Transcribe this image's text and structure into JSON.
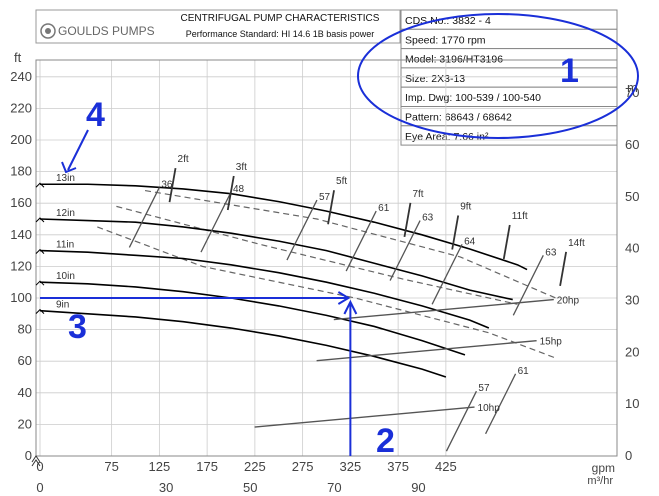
{
  "brand": {
    "name": "GOULDS PUMPS"
  },
  "header": {
    "title": "CENTRIFUGAL PUMP CHARACTERISTICS",
    "subtitle": "Performance Standard: HI 14.6 1B basis power"
  },
  "info_box": [
    "CDS No.: 3832 - 4",
    "Speed: 1770 rpm",
    "Model: 3196/HT3196",
    "Size: 2X3-13",
    "Imp. Dwg: 100-539 / 100-540",
    "Pattern: 68643 / 68642",
    "Eye Area: 7.66 in²"
  ],
  "annotations": [
    {
      "text": "1",
      "color": "#1a2fd8"
    },
    {
      "text": "2",
      "color": "#1a2fd8"
    },
    {
      "text": "3",
      "color": "#1a2fd8"
    },
    {
      "text": "4",
      "color": "#1a2fd8"
    }
  ],
  "chart_data": {
    "type": "line",
    "title": "CENTRIFUGAL PUMP CHARACTERISTICS",
    "xlabel": "gpm",
    "xlabel2": "m³/hr",
    "ylabel": "ft",
    "ylabel2": "m",
    "xlim": [
      0,
      510
    ],
    "ylim": [
      0,
      250
    ],
    "y2lim": [
      0,
      76.2
    ],
    "x2lim": [
      0,
      115.8
    ],
    "grid": true,
    "x_ticks": [
      0,
      75,
      125,
      175,
      225,
      275,
      325,
      375,
      425
    ],
    "x_tick_labels": [
      "0",
      "75",
      "125",
      "175",
      "225",
      "275",
      "325",
      "375",
      "425"
    ],
    "y_ticks": [
      0,
      20,
      40,
      60,
      80,
      100,
      120,
      140,
      160,
      180,
      200,
      220,
      240
    ],
    "y_tick_labels": [
      "0",
      "20",
      "40",
      "60",
      "80",
      "100",
      "120",
      "140",
      "160",
      "180",
      "200",
      "220",
      "240"
    ],
    "y2_ticks": [
      0,
      10,
      20,
      30,
      40,
      50,
      60,
      70
    ],
    "y2_tick_labels": [
      "0",
      "10",
      "20",
      "30",
      "40",
      "50",
      "60",
      "70"
    ],
    "x2_ticks": [
      0,
      30,
      50,
      70,
      90
    ],
    "x2_tick_labels": [
      "0",
      "30",
      "50",
      "70",
      "90"
    ],
    "impeller_curves": [
      {
        "name": "13in",
        "x": [
          0,
          50,
          100,
          150,
          200,
          250,
          300,
          350,
          400,
          450,
          500,
          510
        ],
        "y": [
          172,
          172,
          171,
          169,
          166,
          161,
          155,
          148,
          140,
          131,
          121,
          118
        ]
      },
      {
        "name": "12in",
        "x": [
          0,
          50,
          100,
          150,
          200,
          250,
          300,
          350,
          400,
          450,
          495
        ],
        "y": [
          150,
          149,
          148,
          145,
          141,
          136,
          130,
          122,
          114,
          105,
          99
        ]
      },
      {
        "name": "11in",
        "x": [
          0,
          50,
          100,
          150,
          200,
          250,
          300,
          350,
          400,
          450,
          470
        ],
        "y": [
          130,
          129,
          127,
          125,
          121,
          116,
          110,
          103,
          95,
          86,
          81
        ]
      },
      {
        "name": "10in",
        "x": [
          0,
          50,
          100,
          150,
          200,
          250,
          300,
          350,
          400,
          445
        ],
        "y": [
          110,
          109,
          107,
          104,
          100,
          95,
          89,
          82,
          73,
          64
        ]
      },
      {
        "name": "9in",
        "x": [
          0,
          50,
          100,
          150,
          200,
          250,
          300,
          350,
          400,
          425
        ],
        "y": [
          92,
          90,
          88,
          85,
          81,
          76,
          70,
          63,
          55,
          50
        ]
      }
    ],
    "efficiency_labels": [
      {
        "text": "36",
        "x": 125,
        "y": 170
      },
      {
        "text": "48",
        "x": 200,
        "y": 167
      },
      {
        "text": "57",
        "x": 290,
        "y": 162
      },
      {
        "text": "61",
        "x": 352,
        "y": 155
      },
      {
        "text": "63",
        "x": 398,
        "y": 149
      },
      {
        "text": "64",
        "x": 442,
        "y": 134
      },
      {
        "text": "63",
        "x": 527,
        "y": 127
      },
      {
        "text": "61",
        "x": 498,
        "y": 52
      },
      {
        "text": "57",
        "x": 457,
        "y": 41
      }
    ],
    "npshr_labels": [
      {
        "text": "2ft",
        "x": 144,
        "y": 186
      },
      {
        "text": "3ft",
        "x": 205,
        "y": 181
      },
      {
        "text": "5ft",
        "x": 310,
        "y": 172
      },
      {
        "text": "7ft",
        "x": 390,
        "y": 164
      },
      {
        "text": "9ft",
        "x": 440,
        "y": 156
      },
      {
        "text": "11ft",
        "x": 494,
        "y": 150
      },
      {
        "text": "14ft",
        "x": 553,
        "y": 133
      }
    ],
    "power_labels": [
      {
        "text": "20hp",
        "x": 538,
        "y": 99
      },
      {
        "text": "15hp",
        "x": 520,
        "y": 73
      },
      {
        "text": "10hp",
        "x": 455,
        "y": 31
      }
    ],
    "operating_point": {
      "gpm": 325,
      "head_ft": 100
    }
  },
  "colors": {
    "annotation": "#1a2fd8",
    "curve": "#000000",
    "secondary": "#555555",
    "grid": "#cccccc"
  }
}
